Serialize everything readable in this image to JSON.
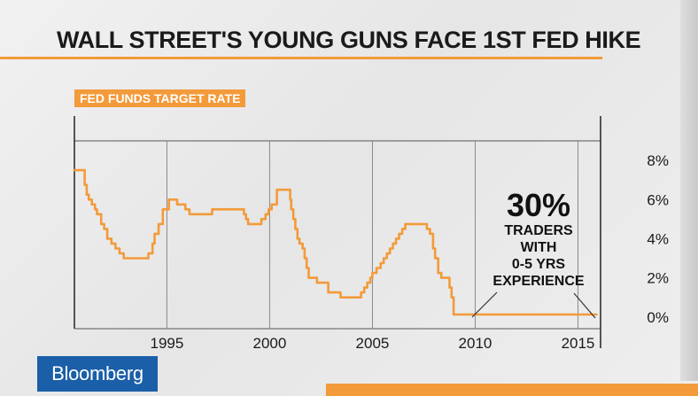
{
  "headline": "WALL STREET'S YOUNG GUNS FACE 1ST FED HIKE",
  "logo_text": "Bloomberg",
  "colors": {
    "accent": "#f39a3a",
    "line": "#f39a3a",
    "text": "#1a1a1a",
    "logo_bg": "#1a5fa8"
  },
  "chart_data": {
    "type": "line",
    "title": "FED FUNDS TARGET RATE",
    "xlabel": "",
    "ylabel": "",
    "xlim": [
      1990.5,
      2016.1
    ],
    "ylim": [
      -0.6,
      9.0
    ],
    "x_ticks": [
      1995,
      2000,
      2005,
      2010,
      2015
    ],
    "y_ticks": [
      0,
      2,
      4,
      6,
      8
    ],
    "y_tick_labels": [
      "0%",
      "2%",
      "4%",
      "6%",
      "8%"
    ],
    "grid": "vertical",
    "annotation": {
      "value": "30%",
      "lines": [
        "TRADERS",
        "WITH",
        "0-5 YRS",
        "EXPERIENCE"
      ]
    },
    "series": [
      {
        "x": [
          1990.5,
          1990.9,
          1991.0,
          1991.1,
          1991.2,
          1991.35,
          1991.5,
          1991.6,
          1991.8,
          1991.95,
          1992.1,
          1992.3,
          1992.5,
          1992.7,
          1992.9,
          1993.5,
          1994.0,
          1994.1,
          1994.3,
          1994.4,
          1994.6,
          1994.8,
          1994.95,
          1995.1,
          1995.5,
          1995.9,
          1996.1,
          1997.2,
          1998.5,
          1998.75,
          1998.85,
          1998.95,
          1999.45,
          1999.6,
          1999.8,
          1999.95,
          2000.1,
          2000.35,
          2000.9,
          2001.0,
          2001.05,
          2001.15,
          2001.25,
          2001.35,
          2001.45,
          2001.6,
          2001.7,
          2001.8,
          2001.9,
          2002.3,
          2002.85,
          2003.45,
          2004.0,
          2004.45,
          2004.6,
          2004.75,
          2004.9,
          2005.0,
          2005.2,
          2005.4,
          2005.55,
          2005.7,
          2005.85,
          2006.0,
          2006.15,
          2006.3,
          2006.45,
          2006.6,
          2007.5,
          2007.65,
          2007.8,
          2007.95,
          2008.05,
          2008.2,
          2008.35,
          2008.75,
          2008.85,
          2008.95,
          2015.9
        ],
        "values": [
          7.5,
          7.5,
          6.75,
          6.25,
          6.0,
          5.75,
          5.5,
          5.25,
          4.75,
          4.5,
          4.0,
          3.75,
          3.5,
          3.25,
          3.0,
          3.0,
          3.0,
          3.25,
          3.75,
          4.25,
          4.75,
          5.5,
          5.5,
          6.0,
          5.75,
          5.5,
          5.25,
          5.5,
          5.5,
          5.25,
          5.0,
          4.75,
          4.75,
          5.0,
          5.25,
          5.5,
          5.75,
          6.5,
          6.5,
          6.0,
          5.5,
          5.0,
          4.5,
          4.0,
          3.75,
          3.5,
          3.0,
          2.5,
          2.0,
          1.75,
          1.25,
          1.0,
          1.0,
          1.25,
          1.5,
          1.75,
          2.0,
          2.25,
          2.5,
          2.75,
          3.0,
          3.25,
          3.5,
          3.75,
          4.0,
          4.25,
          4.5,
          4.75,
          4.75,
          4.5,
          4.25,
          3.5,
          3.0,
          2.25,
          2.0,
          1.5,
          1.0,
          0.125,
          0.125
        ]
      }
    ]
  }
}
